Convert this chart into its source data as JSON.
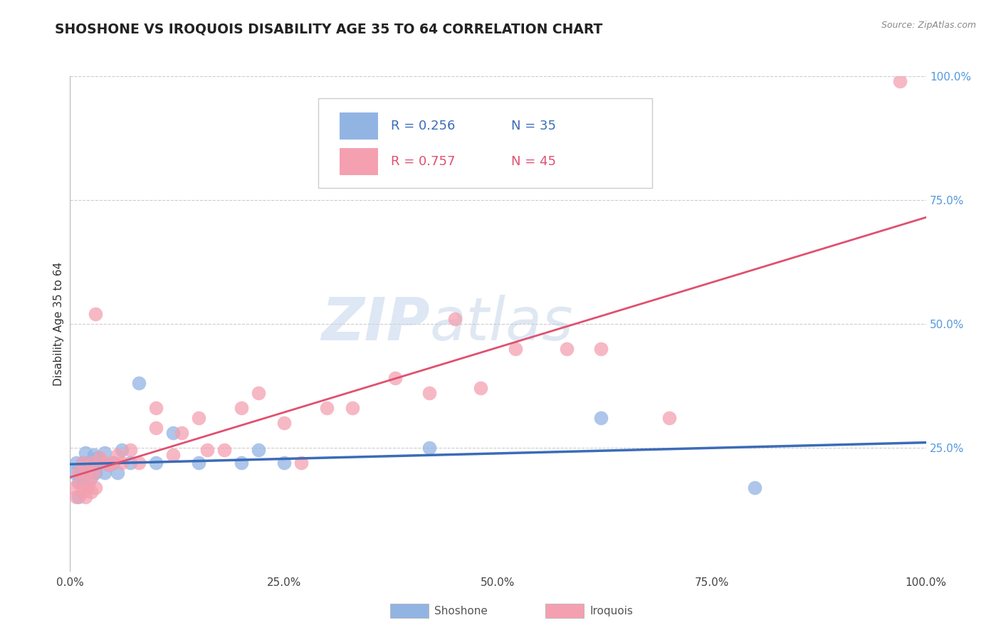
{
  "title": "SHOSHONE VS IROQUOIS DISABILITY AGE 35 TO 64 CORRELATION CHART",
  "source": "Source: ZipAtlas.com",
  "ylabel": "Disability Age 35 to 64",
  "xlim": [
    0.0,
    1.0
  ],
  "ylim": [
    0.0,
    1.0
  ],
  "xticks": [
    0.0,
    0.25,
    0.5,
    0.75,
    1.0
  ],
  "xticklabels": [
    "0.0%",
    "25.0%",
    "50.0%",
    "75.0%",
    "100.0%"
  ],
  "shoshone_color": "#92B4E3",
  "iroquois_color": "#F4A0B0",
  "shoshone_line_color": "#3B6CB7",
  "iroquois_line_color": "#E05070",
  "shoshone_R": 0.256,
  "shoshone_N": 35,
  "iroquois_R": 0.757,
  "iroquois_N": 45,
  "watermark_zip": "ZIP",
  "watermark_atlas": "atlas",
  "background_color": "#ffffff",
  "grid_color": "#cccccc",
  "shoshone_x": [
    0.005,
    0.007,
    0.01,
    0.01,
    0.012,
    0.015,
    0.015,
    0.018,
    0.02,
    0.02,
    0.022,
    0.025,
    0.025,
    0.028,
    0.03,
    0.03,
    0.032,
    0.035,
    0.04,
    0.04,
    0.045,
    0.05,
    0.055,
    0.06,
    0.07,
    0.08,
    0.1,
    0.12,
    0.15,
    0.2,
    0.22,
    0.25,
    0.42,
    0.62,
    0.8
  ],
  "shoshone_y": [
    0.2,
    0.22,
    0.18,
    0.15,
    0.2,
    0.22,
    0.18,
    0.24,
    0.2,
    0.17,
    0.22,
    0.19,
    0.215,
    0.235,
    0.2,
    0.215,
    0.23,
    0.22,
    0.24,
    0.2,
    0.215,
    0.22,
    0.2,
    0.245,
    0.22,
    0.38,
    0.22,
    0.28,
    0.22,
    0.22,
    0.245,
    0.22,
    0.25,
    0.31,
    0.17
  ],
  "iroquois_x": [
    0.005,
    0.007,
    0.01,
    0.012,
    0.015,
    0.015,
    0.018,
    0.02,
    0.02,
    0.022,
    0.025,
    0.025,
    0.028,
    0.03,
    0.03,
    0.035,
    0.04,
    0.045,
    0.05,
    0.055,
    0.06,
    0.07,
    0.08,
    0.1,
    0.1,
    0.12,
    0.13,
    0.15,
    0.16,
    0.18,
    0.2,
    0.22,
    0.25,
    0.27,
    0.3,
    0.33,
    0.38,
    0.42,
    0.45,
    0.48,
    0.52,
    0.58,
    0.62,
    0.7,
    0.97
  ],
  "iroquois_y": [
    0.17,
    0.15,
    0.2,
    0.18,
    0.16,
    0.22,
    0.15,
    0.17,
    0.2,
    0.18,
    0.16,
    0.22,
    0.2,
    0.17,
    0.52,
    0.23,
    0.22,
    0.215,
    0.22,
    0.235,
    0.22,
    0.245,
    0.22,
    0.33,
    0.29,
    0.235,
    0.28,
    0.31,
    0.245,
    0.245,
    0.33,
    0.36,
    0.3,
    0.22,
    0.33,
    0.33,
    0.39,
    0.36,
    0.51,
    0.37,
    0.45,
    0.45,
    0.45,
    0.31,
    0.99
  ]
}
